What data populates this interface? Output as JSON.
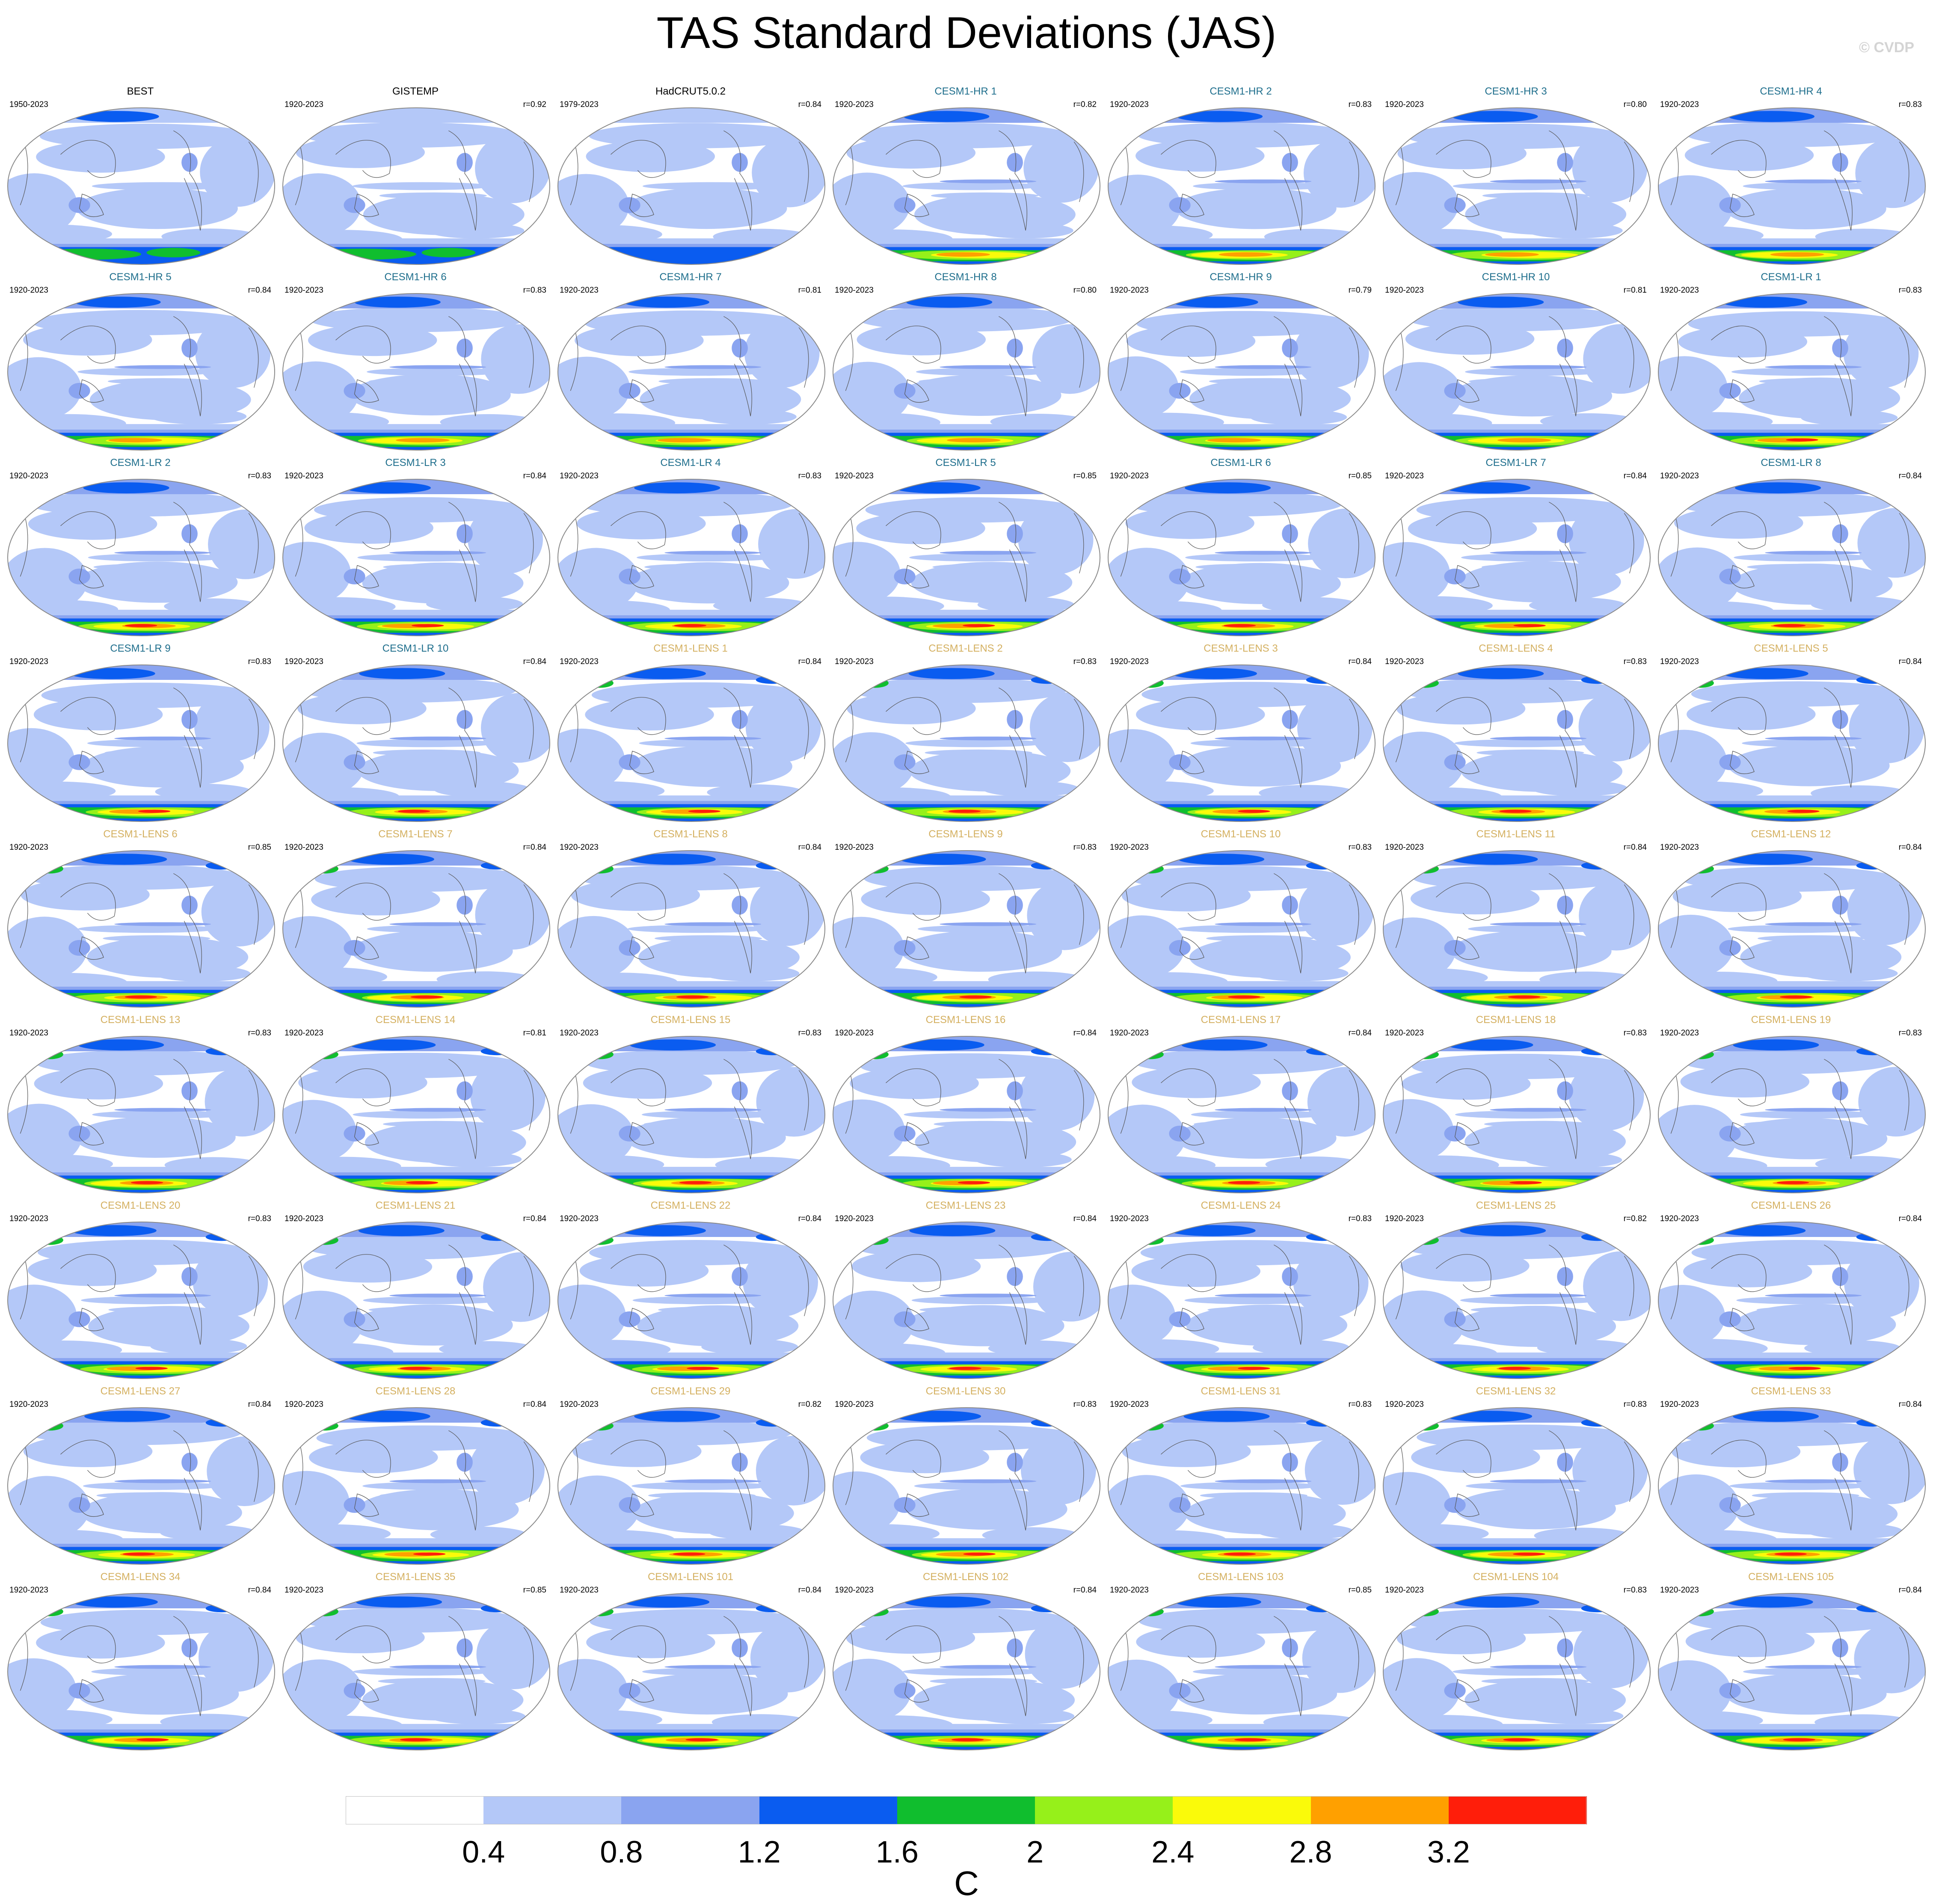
{
  "title": "TAS Standard Deviations (JAS)",
  "watermark": "© CVDP",
  "colors": {
    "observation_label": "#000000",
    "cesm1_hr_label": "#1e6e8c",
    "cesm1_lr_label": "#1e6e8c",
    "cesm1_lens_label": "#d4b060",
    "coastline": "#555555",
    "panel_border": "#8a8a8a"
  },
  "colorbar": {
    "colors": [
      "#ffffff",
      "#b4c8f8",
      "#8aa4f0",
      "#0a5cf0",
      "#10be2e",
      "#96f01a",
      "#fafa0a",
      "#ffa000",
      "#ff1e0a"
    ],
    "tick_labels": [
      "0.4",
      "0.8",
      "1.2",
      "1.6",
      "2",
      "2.4",
      "2.8",
      "3.2"
    ],
    "units": "C"
  },
  "panels": [
    {
      "name": "BEST",
      "years": "1950-2023",
      "r": "",
      "group": "obs"
    },
    {
      "name": "GISTEMP",
      "years": "1920-2023",
      "r": "r=0.92",
      "group": "obs"
    },
    {
      "name": "HadCRUT5.0.2",
      "years": "1979-2023",
      "r": "r=0.84",
      "group": "obs"
    },
    {
      "name": "CESM1-HR 1",
      "years": "1920-2023",
      "r": "r=0.82",
      "group": "hr"
    },
    {
      "name": "CESM1-HR 2",
      "years": "1920-2023",
      "r": "r=0.83",
      "group": "hr"
    },
    {
      "name": "CESM1-HR 3",
      "years": "1920-2023",
      "r": "r=0.80",
      "group": "hr"
    },
    {
      "name": "CESM1-HR 4",
      "years": "1920-2023",
      "r": "r=0.83",
      "group": "hr"
    },
    {
      "name": "CESM1-HR 5",
      "years": "1920-2023",
      "r": "r=0.84",
      "group": "hr"
    },
    {
      "name": "CESM1-HR 6",
      "years": "1920-2023",
      "r": "r=0.83",
      "group": "hr"
    },
    {
      "name": "CESM1-HR 7",
      "years": "1920-2023",
      "r": "r=0.81",
      "group": "hr"
    },
    {
      "name": "CESM1-HR 8",
      "years": "1920-2023",
      "r": "r=0.80",
      "group": "hr"
    },
    {
      "name": "CESM1-HR 9",
      "years": "1920-2023",
      "r": "r=0.79",
      "group": "hr"
    },
    {
      "name": "CESM1-HR 10",
      "years": "1920-2023",
      "r": "r=0.81",
      "group": "hr"
    },
    {
      "name": "CESM1-LR 1",
      "years": "1920-2023",
      "r": "r=0.83",
      "group": "lr"
    },
    {
      "name": "CESM1-LR 2",
      "years": "1920-2023",
      "r": "r=0.83",
      "group": "lr"
    },
    {
      "name": "CESM1-LR 3",
      "years": "1920-2023",
      "r": "r=0.84",
      "group": "lr"
    },
    {
      "name": "CESM1-LR 4",
      "years": "1920-2023",
      "r": "r=0.83",
      "group": "lr"
    },
    {
      "name": "CESM1-LR 5",
      "years": "1920-2023",
      "r": "r=0.85",
      "group": "lr"
    },
    {
      "name": "CESM1-LR 6",
      "years": "1920-2023",
      "r": "r=0.85",
      "group": "lr"
    },
    {
      "name": "CESM1-LR 7",
      "years": "1920-2023",
      "r": "r=0.84",
      "group": "lr"
    },
    {
      "name": "CESM1-LR 8",
      "years": "1920-2023",
      "r": "r=0.84",
      "group": "lr"
    },
    {
      "name": "CESM1-LR 9",
      "years": "1920-2023",
      "r": "r=0.83",
      "group": "lr"
    },
    {
      "name": "CESM1-LR 10",
      "years": "1920-2023",
      "r": "r=0.84",
      "group": "lr"
    },
    {
      "name": "CESM1-LENS 1",
      "years": "1920-2023",
      "r": "r=0.84",
      "group": "lens"
    },
    {
      "name": "CESM1-LENS 2",
      "years": "1920-2023",
      "r": "r=0.83",
      "group": "lens"
    },
    {
      "name": "CESM1-LENS 3",
      "years": "1920-2023",
      "r": "r=0.84",
      "group": "lens"
    },
    {
      "name": "CESM1-LENS 4",
      "years": "1920-2023",
      "r": "r=0.83",
      "group": "lens"
    },
    {
      "name": "CESM1-LENS 5",
      "years": "1920-2023",
      "r": "r=0.84",
      "group": "lens"
    },
    {
      "name": "CESM1-LENS 6",
      "years": "1920-2023",
      "r": "r=0.85",
      "group": "lens"
    },
    {
      "name": "CESM1-LENS 7",
      "years": "1920-2023",
      "r": "r=0.84",
      "group": "lens"
    },
    {
      "name": "CESM1-LENS 8",
      "years": "1920-2023",
      "r": "r=0.84",
      "group": "lens"
    },
    {
      "name": "CESM1-LENS 9",
      "years": "1920-2023",
      "r": "r=0.83",
      "group": "lens"
    },
    {
      "name": "CESM1-LENS 10",
      "years": "1920-2023",
      "r": "r=0.83",
      "group": "lens"
    },
    {
      "name": "CESM1-LENS 11",
      "years": "1920-2023",
      "r": "r=0.84",
      "group": "lens"
    },
    {
      "name": "CESM1-LENS 12",
      "years": "1920-2023",
      "r": "r=0.84",
      "group": "lens"
    },
    {
      "name": "CESM1-LENS 13",
      "years": "1920-2023",
      "r": "r=0.83",
      "group": "lens"
    },
    {
      "name": "CESM1-LENS 14",
      "years": "1920-2023",
      "r": "r=0.81",
      "group": "lens"
    },
    {
      "name": "CESM1-LENS 15",
      "years": "1920-2023",
      "r": "r=0.83",
      "group": "lens"
    },
    {
      "name": "CESM1-LENS 16",
      "years": "1920-2023",
      "r": "r=0.84",
      "group": "lens"
    },
    {
      "name": "CESM1-LENS 17",
      "years": "1920-2023",
      "r": "r=0.84",
      "group": "lens"
    },
    {
      "name": "CESM1-LENS 18",
      "years": "1920-2023",
      "r": "r=0.83",
      "group": "lens"
    },
    {
      "name": "CESM1-LENS 19",
      "years": "1920-2023",
      "r": "r=0.83",
      "group": "lens"
    },
    {
      "name": "CESM1-LENS 20",
      "years": "1920-2023",
      "r": "r=0.83",
      "group": "lens"
    },
    {
      "name": "CESM1-LENS 21",
      "years": "1920-2023",
      "r": "r=0.84",
      "group": "lens"
    },
    {
      "name": "CESM1-LENS 22",
      "years": "1920-2023",
      "r": "r=0.84",
      "group": "lens"
    },
    {
      "name": "CESM1-LENS 23",
      "years": "1920-2023",
      "r": "r=0.84",
      "group": "lens"
    },
    {
      "name": "CESM1-LENS 24",
      "years": "1920-2023",
      "r": "r=0.83",
      "group": "lens"
    },
    {
      "name": "CESM1-LENS 25",
      "years": "1920-2023",
      "r": "r=0.82",
      "group": "lens"
    },
    {
      "name": "CESM1-LENS 26",
      "years": "1920-2023",
      "r": "r=0.84",
      "group": "lens"
    },
    {
      "name": "CESM1-LENS 27",
      "years": "1920-2023",
      "r": "r=0.84",
      "group": "lens"
    },
    {
      "name": "CESM1-LENS 28",
      "years": "1920-2023",
      "r": "r=0.84",
      "group": "lens"
    },
    {
      "name": "CESM1-LENS 29",
      "years": "1920-2023",
      "r": "r=0.82",
      "group": "lens"
    },
    {
      "name": "CESM1-LENS 30",
      "years": "1920-2023",
      "r": "r=0.83",
      "group": "lens"
    },
    {
      "name": "CESM1-LENS 31",
      "years": "1920-2023",
      "r": "r=0.83",
      "group": "lens"
    },
    {
      "name": "CESM1-LENS 32",
      "years": "1920-2023",
      "r": "r=0.83",
      "group": "lens"
    },
    {
      "name": "CESM1-LENS 33",
      "years": "1920-2023",
      "r": "r=0.84",
      "group": "lens"
    },
    {
      "name": "CESM1-LENS 34",
      "years": "1920-2023",
      "r": "r=0.84",
      "group": "lens"
    },
    {
      "name": "CESM1-LENS 35",
      "years": "1920-2023",
      "r": "r=0.85",
      "group": "lens"
    },
    {
      "name": "CESM1-LENS 101",
      "years": "1920-2023",
      "r": "r=0.84",
      "group": "lens"
    },
    {
      "name": "CESM1-LENS 102",
      "years": "1920-2023",
      "r": "r=0.84",
      "group": "lens"
    },
    {
      "name": "CESM1-LENS 103",
      "years": "1920-2023",
      "r": "r=0.85",
      "group": "lens"
    },
    {
      "name": "CESM1-LENS 104",
      "years": "1920-2023",
      "r": "r=0.83",
      "group": "lens"
    },
    {
      "name": "CESM1-LENS 105",
      "years": "1920-2023",
      "r": "r=0.84",
      "group": "lens"
    }
  ]
}
